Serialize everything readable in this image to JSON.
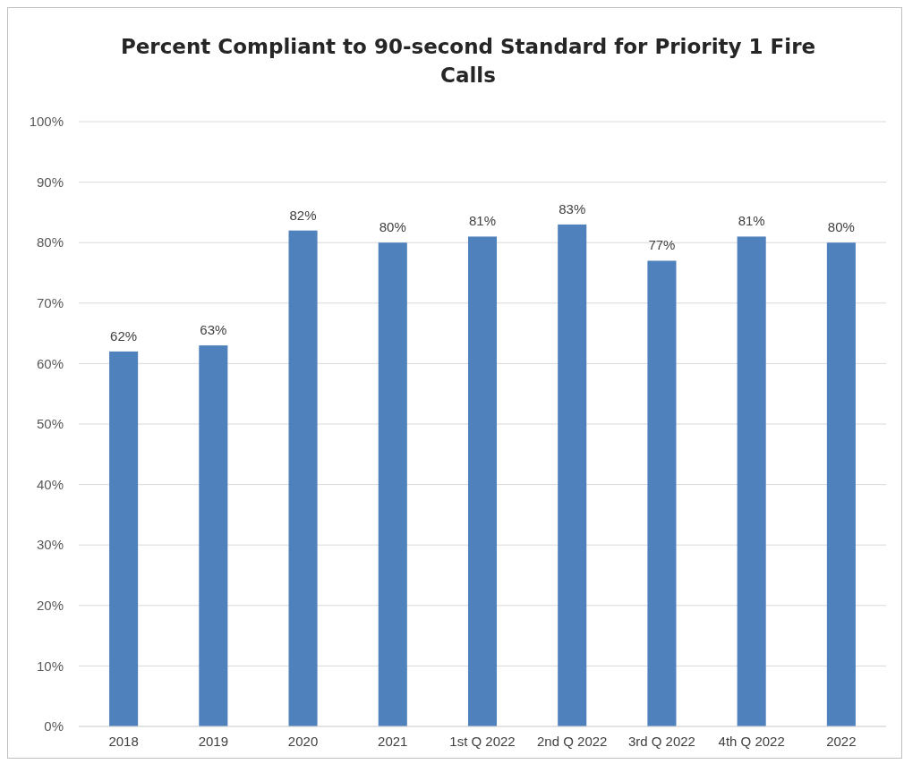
{
  "chart_data": {
    "type": "bar",
    "title": "Percent Compliant to 90-second Standard for Priority 1 Fire Calls",
    "categories": [
      "2018",
      "2019",
      "2020",
      "2021",
      "1st Q 2022",
      "2nd Q 2022",
      "3rd Q 2022",
      "4th Q 2022",
      "2022"
    ],
    "values": [
      62,
      63,
      82,
      80,
      81,
      83,
      77,
      81,
      80
    ],
    "value_labels": [
      "62%",
      "63%",
      "82%",
      "80%",
      "81%",
      "83%",
      "77%",
      "81%",
      "80%"
    ],
    "color": "#4f81bd",
    "ylim": [
      0,
      100
    ],
    "yticks": [
      {
        "value": 0,
        "label": "0%"
      },
      {
        "value": 10,
        "label": "10%"
      },
      {
        "value": 20,
        "label": "20%"
      },
      {
        "value": 30,
        "label": "30%"
      },
      {
        "value": 40,
        "label": "40%"
      },
      {
        "value": 50,
        "label": "50%"
      },
      {
        "value": 60,
        "label": "60%"
      },
      {
        "value": 70,
        "label": "70%"
      },
      {
        "value": 80,
        "label": "80%"
      },
      {
        "value": 90,
        "label": "90%"
      },
      {
        "value": 100,
        "label": "100%"
      }
    ],
    "grid": "y"
  }
}
